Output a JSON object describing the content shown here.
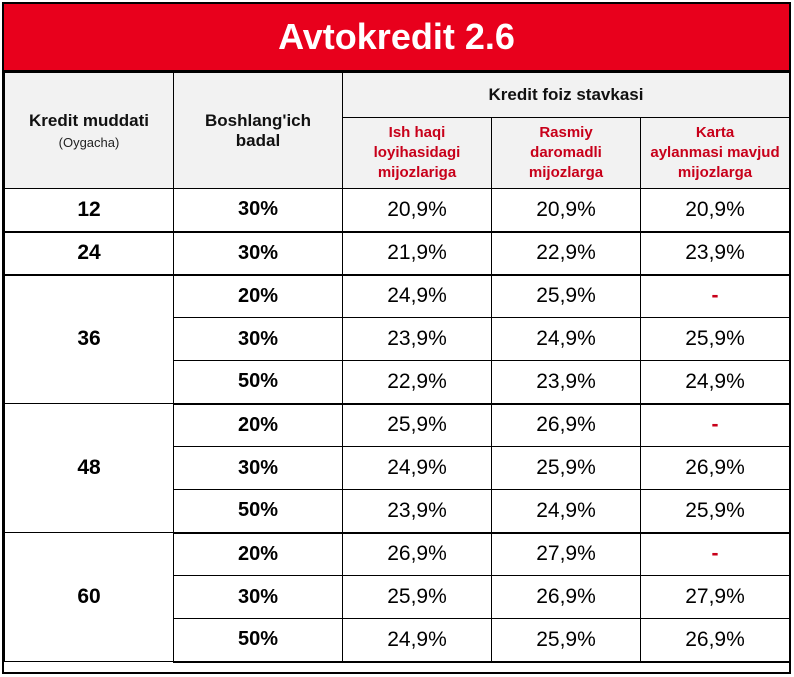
{
  "title": "Avtokredit 2.6",
  "headers": {
    "term": "Kredit muddati",
    "term_note": "(Oygacha)",
    "down_payment_line1": "Boshlang'ich",
    "down_payment_line2": "badal",
    "rate_group": "Kredit foiz stavkasi",
    "sub": [
      {
        "l1": "Ish haqi",
        "l2": "loyihasidagi",
        "l3": "mijozlariga"
      },
      {
        "l1": "Rasmiy",
        "l2": "daromadli",
        "l3": "mijozlarga"
      },
      {
        "l1": "Karta",
        "l2": "aylanmasi mavjud",
        "l3": "mijozlarga"
      }
    ]
  },
  "groups": [
    {
      "term": "12",
      "rows": [
        {
          "badal": "30%",
          "r1": "20,9%",
          "r2": "20,9%",
          "r3": "20,9%"
        }
      ]
    },
    {
      "term": "24",
      "rows": [
        {
          "badal": "30%",
          "r1": "21,9%",
          "r2": "22,9%",
          "r3": "23,9%"
        }
      ]
    },
    {
      "term": "36",
      "rows": [
        {
          "badal": "20%",
          "r1": "24,9%",
          "r2": "25,9%",
          "r3": "-"
        },
        {
          "badal": "30%",
          "r1": "23,9%",
          "r2": "24,9%",
          "r3": "25,9%"
        },
        {
          "badal": "50%",
          "r1": "22,9%",
          "r2": "23,9%",
          "r3": "24,9%"
        }
      ]
    },
    {
      "term": "48",
      "rows": [
        {
          "badal": "20%",
          "r1": "25,9%",
          "r2": "26,9%",
          "r3": "-"
        },
        {
          "badal": "30%",
          "r1": "24,9%",
          "r2": "25,9%",
          "r3": "26,9%"
        },
        {
          "badal": "50%",
          "r1": "23,9%",
          "r2": "24,9%",
          "r3": "25,9%"
        }
      ]
    },
    {
      "term": "60",
      "rows": [
        {
          "badal": "20%",
          "r1": "26,9%",
          "r2": "27,9%",
          "r3": "-"
        },
        {
          "badal": "30%",
          "r1": "25,9%",
          "r2": "26,9%",
          "r3": "27,9%"
        },
        {
          "badal": "50%",
          "r1": "24,9%",
          "r2": "25,9%",
          "r3": "26,9%"
        }
      ]
    }
  ],
  "colors": {
    "title_bg": "#e8001c",
    "accent_text": "#c8001a",
    "header_bg": "#f2f2f2"
  }
}
